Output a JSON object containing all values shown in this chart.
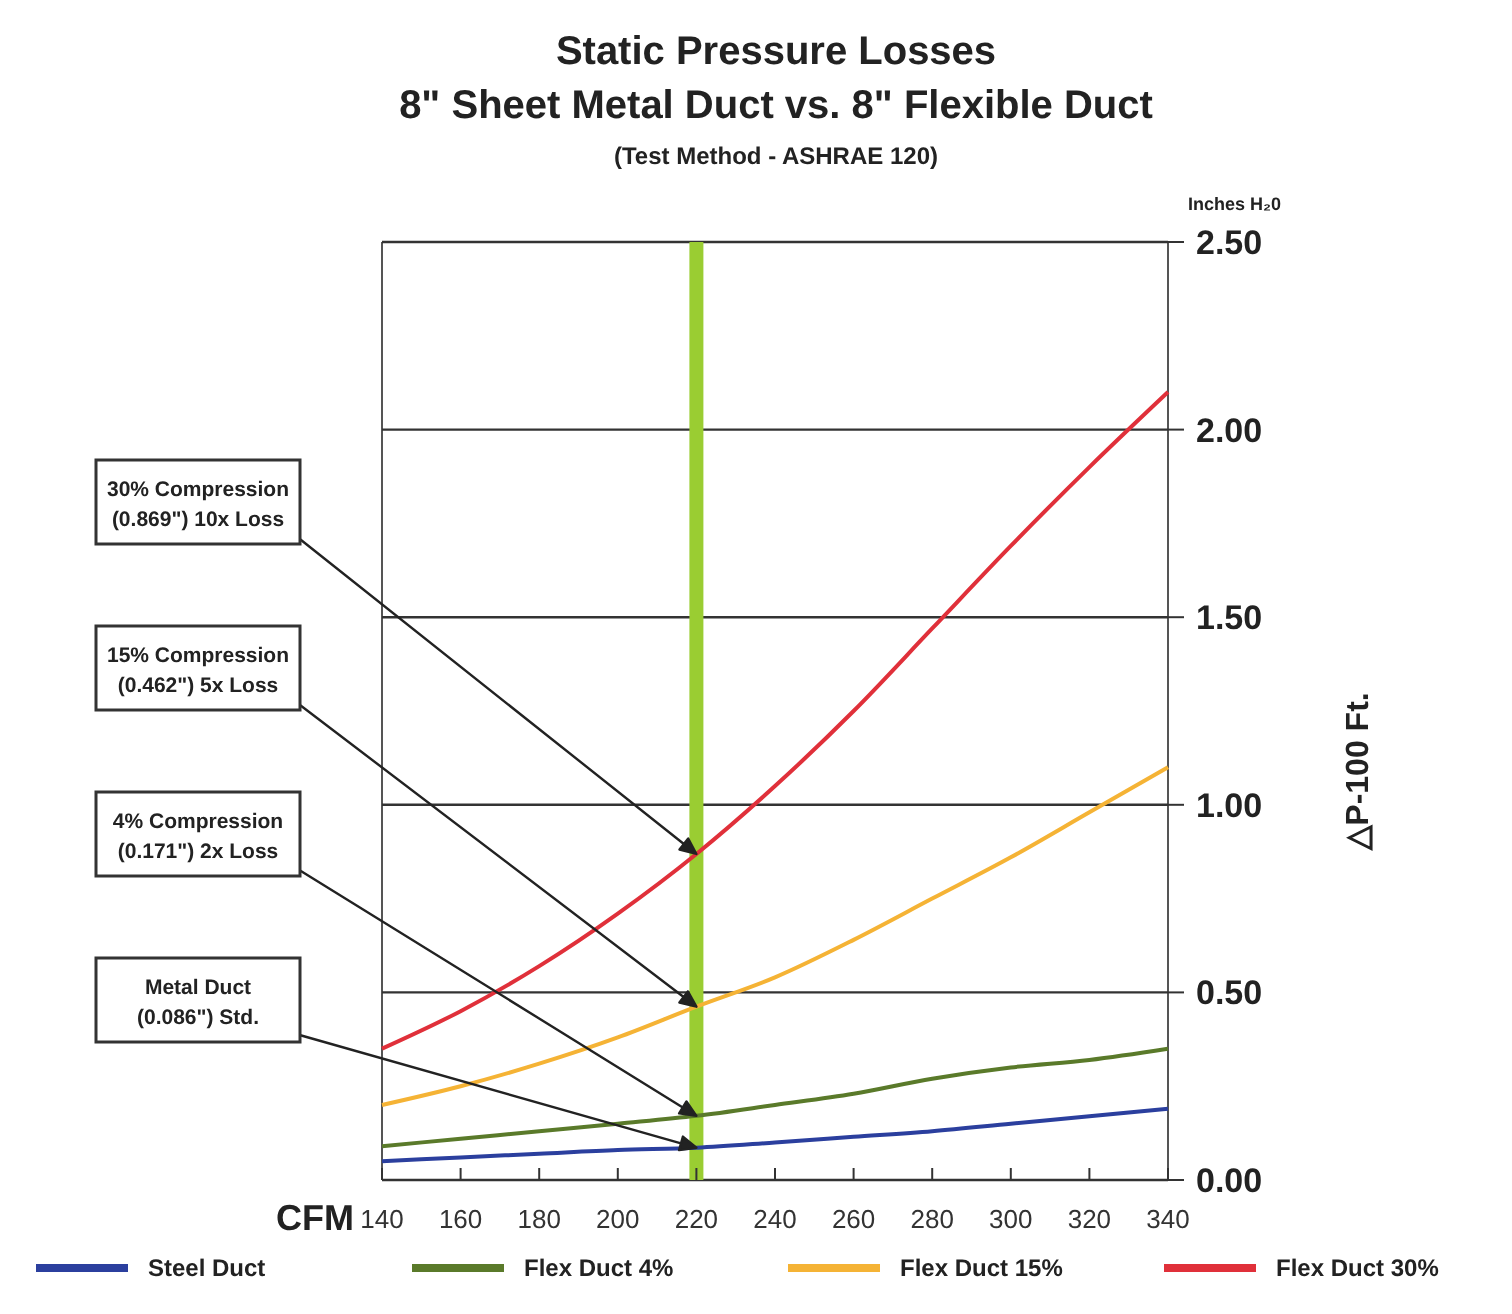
{
  "chart_data": {
    "type": "line",
    "title": "Static Pressure Losses\n8\" Sheet Metal Duct vs. 8\" Flexible Duct",
    "subtitle": "(Test Method - ASHRAE 120)",
    "xlabel": "CFM",
    "ylabel": "△P-100 Ft.",
    "x": [
      140,
      160,
      180,
      200,
      220,
      240,
      260,
      280,
      300,
      320,
      340
    ],
    "xlim": [
      140,
      340
    ],
    "xticks": [
      140,
      160,
      180,
      200,
      220,
      240,
      260,
      280,
      300,
      320,
      340
    ],
    "ylim": [
      0,
      2.5
    ],
    "yticks": [
      {
        "value": 0,
        "label": "0.00"
      },
      {
        "value": 0.5,
        "label": "0.50"
      },
      {
        "value": 1,
        "label": "1.00"
      },
      {
        "value": 1.5,
        "label": "1.50"
      },
      {
        "value": 2,
        "label": "2.00"
      },
      {
        "value": 2.5,
        "label": "2.50"
      }
    ],
    "grid": "y",
    "legend": "bottom",
    "marker": "none",
    "line_style": "solid",
    "series": [
      {
        "name": "Steel Duct",
        "color": "#2b3f9e",
        "values": [
          0.05,
          0.06,
          0.07,
          0.08,
          0.086,
          0.1,
          0.115,
          0.13,
          0.15,
          0.17,
          0.19
        ]
      },
      {
        "name": "Flex Duct 4%",
        "color": "#5a7a2a",
        "values": [
          0.09,
          0.11,
          0.13,
          0.15,
          0.171,
          0.2,
          0.23,
          0.27,
          0.3,
          0.32,
          0.35
        ]
      },
      {
        "name": "Flex Duct 15%",
        "color": "#f5b335",
        "values": [
          0.2,
          0.25,
          0.31,
          0.38,
          0.462,
          0.54,
          0.64,
          0.75,
          0.86,
          0.98,
          1.1
        ]
      },
      {
        "name": "Flex Duct 30%",
        "color": "#e0303a",
        "values": [
          0.35,
          0.45,
          0.57,
          0.71,
          0.869,
          1.05,
          1.25,
          1.47,
          1.69,
          1.9,
          2.1
        ]
      }
    ],
    "ref_lines": [
      {
        "axis": "x",
        "value": 220,
        "color": "#9acd32"
      }
    ],
    "annotations": [
      "Inches H₂0",
      "30% Compression\n(0.869\") 10x Loss",
      "15% Compression\n(0.462\") 5x Loss",
      "4% Compression\n(0.171\") 2x Loss",
      "Metal Duct\n(0.086\") Std."
    ]
  }
}
